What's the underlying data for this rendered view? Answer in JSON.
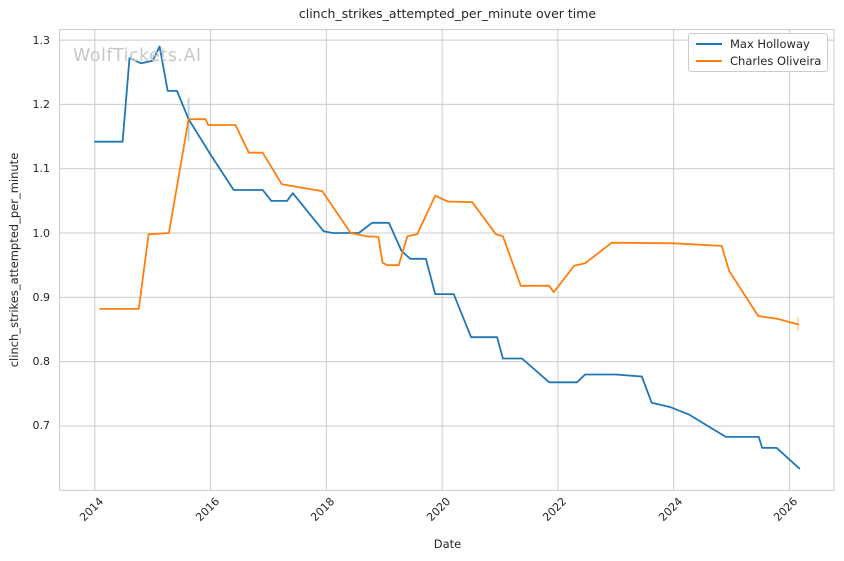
{
  "watermark": "WolfTickets.AI",
  "chart_data": {
    "type": "line",
    "title": "clinch_strikes_attempted_per_minute over time",
    "xlabel": "Date",
    "ylabel": "clinch_strikes_attempted_per_minute",
    "x_ticks": [
      2014,
      2016,
      2018,
      2020,
      2022,
      2024,
      2026
    ],
    "y_ticks": [
      0.7,
      0.8,
      0.9,
      1.0,
      1.1,
      1.2,
      1.3
    ],
    "xlim": [
      2013.39,
      2026.77
    ],
    "ylim": [
      0.6,
      1.3165
    ],
    "grid": true,
    "legend_position": "upper right",
    "colors": {
      "grid": "#cccccc",
      "spine": "#cccccc",
      "text": "#262626",
      "watermark": "#c8c8c8"
    },
    "series": [
      {
        "name": "Max Holloway",
        "color": "#1f77b4",
        "points": [
          [
            2014.0,
            1.142
          ],
          [
            2014.48,
            1.142
          ],
          [
            2014.6,
            1.272
          ],
          [
            2014.8,
            1.264
          ],
          [
            2015.0,
            1.268
          ],
          [
            2015.12,
            1.29
          ],
          [
            2015.26,
            1.221
          ],
          [
            2015.42,
            1.221
          ],
          [
            2015.62,
            1.177
          ],
          [
            2016.0,
            1.122
          ],
          [
            2016.4,
            1.067
          ],
          [
            2016.9,
            1.067
          ],
          [
            2017.05,
            1.05
          ],
          [
            2017.32,
            1.05
          ],
          [
            2017.42,
            1.062
          ],
          [
            2017.95,
            1.003
          ],
          [
            2018.1,
            1.0
          ],
          [
            2018.56,
            1.0
          ],
          [
            2018.79,
            1.016
          ],
          [
            2019.08,
            1.016
          ],
          [
            2019.3,
            0.972
          ],
          [
            2019.45,
            0.96
          ],
          [
            2019.72,
            0.96
          ],
          [
            2019.88,
            0.905
          ],
          [
            2020.2,
            0.905
          ],
          [
            2020.5,
            0.838
          ],
          [
            2020.95,
            0.838
          ],
          [
            2021.05,
            0.805
          ],
          [
            2021.38,
            0.805
          ],
          [
            2021.85,
            0.768
          ],
          [
            2022.33,
            0.768
          ],
          [
            2022.47,
            0.78
          ],
          [
            2023.0,
            0.78
          ],
          [
            2023.45,
            0.777
          ],
          [
            2023.62,
            0.736
          ],
          [
            2023.95,
            0.729
          ],
          [
            2024.26,
            0.718
          ],
          [
            2024.9,
            0.683
          ],
          [
            2025.47,
            0.683
          ],
          [
            2025.53,
            0.666
          ],
          [
            2025.78,
            0.666
          ],
          [
            2026.17,
            0.634
          ]
        ]
      },
      {
        "name": "Charles Oliveira",
        "color": "#ff7f0e",
        "points": [
          [
            2014.09,
            0.882
          ],
          [
            2014.76,
            0.882
          ],
          [
            2014.93,
            0.998
          ],
          [
            2015.28,
            1.0
          ],
          [
            2015.62,
            1.177
          ],
          [
            2015.91,
            1.177
          ],
          [
            2015.96,
            1.168
          ],
          [
            2016.43,
            1.168
          ],
          [
            2016.66,
            1.125
          ],
          [
            2016.9,
            1.125
          ],
          [
            2017.23,
            1.076
          ],
          [
            2017.73,
            1.068
          ],
          [
            2017.93,
            1.065
          ],
          [
            2018.42,
            1.0
          ],
          [
            2018.7,
            0.995
          ],
          [
            2018.9,
            0.994
          ],
          [
            2018.97,
            0.954
          ],
          [
            2019.05,
            0.95
          ],
          [
            2019.25,
            0.95
          ],
          [
            2019.4,
            0.995
          ],
          [
            2019.57,
            0.998
          ],
          [
            2019.88,
            1.058
          ],
          [
            2020.1,
            1.049
          ],
          [
            2020.52,
            1.048
          ],
          [
            2020.93,
            0.998
          ],
          [
            2021.05,
            0.995
          ],
          [
            2021.36,
            0.918
          ],
          [
            2021.85,
            0.918
          ],
          [
            2021.93,
            0.908
          ],
          [
            2022.28,
            0.949
          ],
          [
            2022.47,
            0.953
          ],
          [
            2022.93,
            0.985
          ],
          [
            2024.0,
            0.984
          ],
          [
            2024.83,
            0.98
          ],
          [
            2024.96,
            0.941
          ],
          [
            2025.46,
            0.871
          ],
          [
            2025.78,
            0.867
          ],
          [
            2026.15,
            0.858
          ]
        ]
      }
    ],
    "annotations": [
      {
        "type": "vertical-tick",
        "x": 2015.62,
        "y_from": 1.143,
        "y_to": 1.21,
        "color": "#a9cde8"
      },
      {
        "type": "vertical-tick",
        "x": 2026.15,
        "y_from": 0.848,
        "y_to": 0.869,
        "color": "#ffd1a3"
      }
    ]
  }
}
